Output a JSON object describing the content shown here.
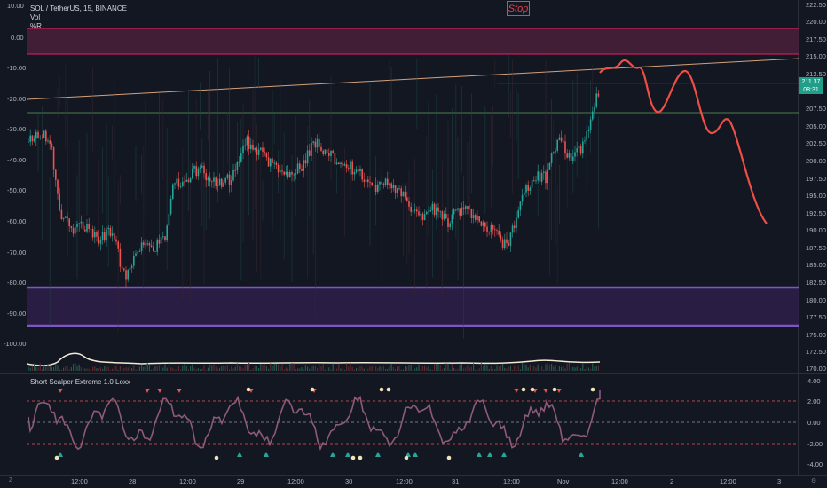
{
  "chart": {
    "symbol_line": "SOL / TetherUS, 15, BINANCE",
    "legend_vol": "Vol",
    "legend_r": "%R",
    "stop_label": "Stop",
    "last_price": "211.37",
    "countdown": "08:31"
  },
  "price_axis": [
    "222.50",
    "220.00",
    "217.50",
    "215.00",
    "212.50",
    "207.50",
    "205.00",
    "202.50",
    "200.00",
    "197.50",
    "195.00",
    "192.50",
    "190.00",
    "187.50",
    "185.00",
    "182.50",
    "180.00",
    "177.50",
    "175.00",
    "172.50",
    "170.00"
  ],
  "wr_axis": [
    "10.00",
    "0.00",
    "-10.00",
    "-20.00",
    "-30.00",
    "-40.00",
    "-50.00",
    "-60.00",
    "-70.00",
    "-80.00",
    "-90.00",
    "-100.00"
  ],
  "indicator": {
    "title": "Short Scalper Extreme 1.0 Loxx",
    "axis": [
      "4.00",
      "2.00",
      "0.00",
      "-2.00",
      "-4.00"
    ]
  },
  "time_axis": [
    "12:00",
    "28",
    "12:00",
    "29",
    "12:00",
    "30",
    "12:00",
    "31",
    "12:00",
    "Nov",
    "12:00",
    "2",
    "12:00",
    "3"
  ],
  "bottom_controls": {
    "left": "Z",
    "right": "⚙"
  },
  "colors": {
    "background": "#131722",
    "up": "#26a69a",
    "down": "#ef5350",
    "projection": "#f04e45",
    "zone_top": "#e91e63",
    "zone_bottom": "#7e57c2",
    "indicator_line": "#8e5a7a"
  }
}
